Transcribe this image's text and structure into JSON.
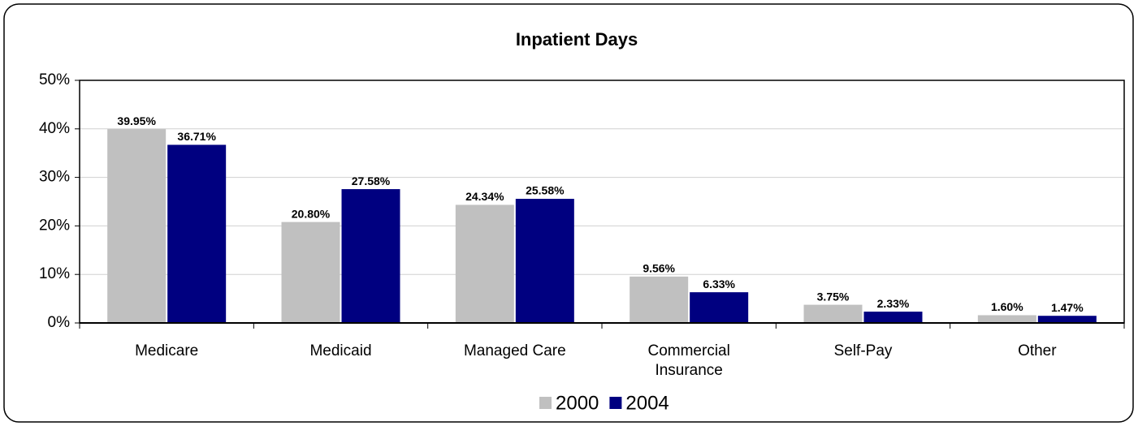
{
  "chart_data": {
    "type": "bar",
    "title": "Inpatient Days",
    "categories": [
      "Medicare",
      "Medicaid",
      "Managed Care",
      "Commercial Insurance",
      "Self-Pay",
      "Other"
    ],
    "series": [
      {
        "name": "2000",
        "color": "#c0c0c0",
        "values": [
          39.95,
          20.8,
          24.34,
          9.56,
          3.75,
          1.6
        ],
        "value_labels": [
          "39.95%",
          "20.80%",
          "24.34%",
          "9.56%",
          "3.75%",
          "1.60%"
        ]
      },
      {
        "name": "2004",
        "color": "#000080",
        "values": [
          36.71,
          27.58,
          25.58,
          6.33,
          2.33,
          1.47
        ],
        "value_labels": [
          "36.71%",
          "27.58%",
          "25.58%",
          "6.33%",
          "2.33%",
          "1.47%"
        ]
      }
    ],
    "ylim": [
      0,
      50
    ],
    "yticks": [
      {
        "value": 0,
        "label": "0%"
      },
      {
        "value": 10,
        "label": "10%"
      },
      {
        "value": 20,
        "label": "20%"
      },
      {
        "value": 30,
        "label": "30%"
      },
      {
        "value": 40,
        "label": "40%"
      },
      {
        "value": 50,
        "label": "50%"
      }
    ],
    "grid": true,
    "legend": "bottom"
  }
}
